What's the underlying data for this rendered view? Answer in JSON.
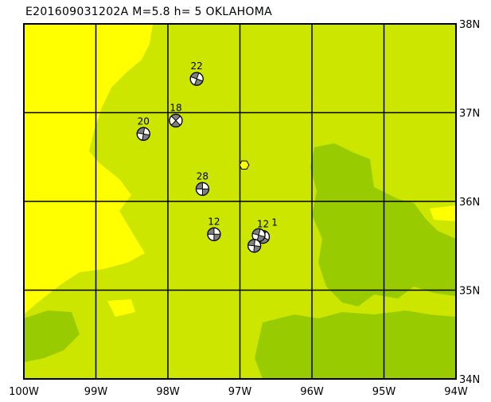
{
  "title": "E201609031202A M=5.8 h=   5 OKLAHOMA",
  "colors": {
    "low": "#ffff00",
    "mid": "#cce600",
    "high": "#99cc00",
    "ball_fill": "#808080"
  },
  "map": {
    "lon_range": [
      -100,
      -94
    ],
    "lat_range": [
      34,
      38
    ],
    "lon_ticks": [
      {
        "v": -100,
        "label": "100W"
      },
      {
        "v": -99,
        "label": "99W"
      },
      {
        "v": -98,
        "label": "98W"
      },
      {
        "v": -97,
        "label": "97W"
      },
      {
        "v": -96,
        "label": "96W"
      },
      {
        "v": -95,
        "label": "95W"
      },
      {
        "v": -94,
        "label": "94W"
      }
    ],
    "lat_ticks": [
      {
        "v": 34,
        "label": "34N"
      },
      {
        "v": 35,
        "label": "35N"
      },
      {
        "v": 36,
        "label": "36N"
      },
      {
        "v": 37,
        "label": "37N"
      },
      {
        "v": 38,
        "label": "38N"
      }
    ]
  },
  "epicenter": {
    "lon": -96.94,
    "lat": 36.41,
    "icon": "hexagon-icon"
  },
  "mechanisms": [
    {
      "label": "22",
      "lon": -97.6,
      "lat": 37.38,
      "rot": 20
    },
    {
      "label": "18",
      "lon": -97.89,
      "lat": 36.91,
      "rot": 45
    },
    {
      "label": "20",
      "lon": -98.34,
      "lat": 36.76,
      "rot": 10
    },
    {
      "label": "28",
      "lon": -97.52,
      "lat": 36.14,
      "rot": 0
    },
    {
      "label": "12",
      "lon": -97.36,
      "lat": 35.63,
      "rot": 0
    },
    {
      "label": "12",
      "lon": -96.68,
      "lat": 35.6,
      "rot": 30
    },
    {
      "label": "1",
      "lon": -96.74,
      "lat": 35.62,
      "rot": 15
    },
    {
      "label": "",
      "lon": -96.8,
      "lat": 35.5,
      "rot": 5
    }
  ]
}
